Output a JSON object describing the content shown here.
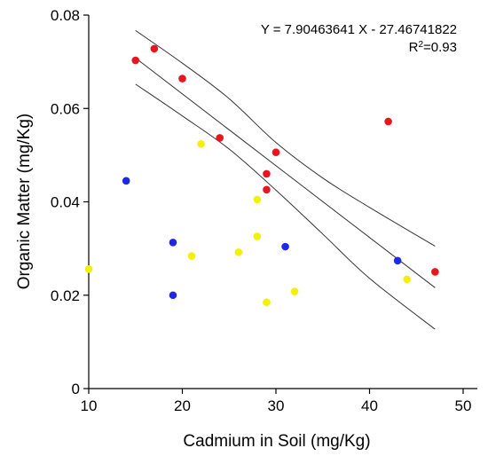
{
  "chart_data": {
    "type": "scatter",
    "title": "",
    "xlabel": "Cadmium in Soil (mg/Kg)",
    "ylabel": "Organic Matter (mg/Kg)",
    "xlim": [
      10,
      50
    ],
    "ylim": [
      0,
      0.08
    ],
    "xticks": [
      "10",
      "20",
      "30",
      "40",
      "50"
    ],
    "yticks": [
      "0",
      "0.02",
      "0.04",
      "0.06",
      "0.08"
    ],
    "annotations": {
      "equation": "Y = 7.90463641 X - 27.46741822",
      "r2_prefix": "R",
      "r2_sup": "2",
      "r2_value": "=0.93"
    },
    "series": [
      {
        "color": "#e8141e",
        "points": [
          {
            "x": 15,
            "y": 0.0703
          },
          {
            "x": 17,
            "y": 0.0728
          },
          {
            "x": 20,
            "y": 0.0664
          },
          {
            "x": 24,
            "y": 0.0537
          },
          {
            "x": 29,
            "y": 0.046
          },
          {
            "x": 29,
            "y": 0.0426
          },
          {
            "x": 30,
            "y": 0.0506
          },
          {
            "x": 42,
            "y": 0.0572
          },
          {
            "x": 47,
            "y": 0.025
          }
        ]
      },
      {
        "color": "#1e28e6",
        "points": [
          {
            "x": 14,
            "y": 0.0445
          },
          {
            "x": 19,
            "y": 0.0313
          },
          {
            "x": 19,
            "y": 0.02
          },
          {
            "x": 31,
            "y": 0.0304
          },
          {
            "x": 43,
            "y": 0.0274
          }
        ]
      },
      {
        "color": "#f2f200",
        "points": [
          {
            "x": 10,
            "y": 0.0256
          },
          {
            "x": 21,
            "y": 0.0284
          },
          {
            "x": 22,
            "y": 0.0524
          },
          {
            "x": 26,
            "y": 0.0292
          },
          {
            "x": 28,
            "y": 0.0405
          },
          {
            "x": 28,
            "y": 0.0326
          },
          {
            "x": 29,
            "y": 0.0185
          },
          {
            "x": 32,
            "y": 0.0208
          },
          {
            "x": 44,
            "y": 0.0234
          }
        ]
      }
    ],
    "regression": {
      "fit": [
        {
          "x": 15,
          "y": 0.0708
        },
        {
          "x": 47,
          "y": 0.0216
        }
      ],
      "upper_band": [
        {
          "x": 15,
          "y": 0.0767
        },
        {
          "x": 20,
          "y": 0.0697
        },
        {
          "x": 25,
          "y": 0.0621
        },
        {
          "x": 30,
          "y": 0.0527
        },
        {
          "x": 35,
          "y": 0.0451
        },
        {
          "x": 40,
          "y": 0.0388
        },
        {
          "x": 47,
          "y": 0.0305
        }
      ],
      "lower_band": [
        {
          "x": 15,
          "y": 0.0652
        },
        {
          "x": 20,
          "y": 0.0584
        },
        {
          "x": 25,
          "y": 0.0513
        },
        {
          "x": 30,
          "y": 0.0425
        },
        {
          "x": 35,
          "y": 0.0331
        },
        {
          "x": 40,
          "y": 0.0236
        },
        {
          "x": 47,
          "y": 0.0127
        }
      ]
    },
    "grid": false,
    "legend": "none"
  }
}
